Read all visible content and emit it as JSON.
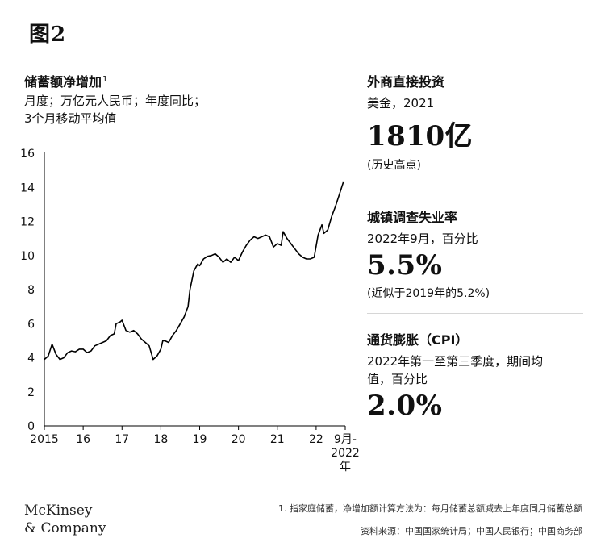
{
  "figure_label": "图2",
  "chart_data": {
    "type": "line",
    "title": "储蓄额净增加",
    "title_footnote_mark": "1",
    "subtitle_line1": "月度；万亿元人民币；年度同比；",
    "subtitle_line2": "3个月移动平均值",
    "ylim": [
      0,
      16
    ],
    "yticks": [
      "0",
      "2",
      "4",
      "6",
      "8",
      "10",
      "12",
      "14",
      "16"
    ],
    "xlim": [
      2015,
      2022.75
    ],
    "xticks": [
      {
        "x": 2015,
        "label": "2015"
      },
      {
        "x": 2016,
        "label": "16"
      },
      {
        "x": 2017,
        "label": "17"
      },
      {
        "x": 2018,
        "label": "18"
      },
      {
        "x": 2019,
        "label": "19"
      },
      {
        "x": 2020,
        "label": "20"
      },
      {
        "x": 2021,
        "label": "21"
      },
      {
        "x": 2022,
        "label": "22"
      }
    ],
    "end_tick_label": [
      "9月-",
      "2022",
      "年"
    ],
    "grid": false,
    "line_color": "#000000",
    "series": [
      {
        "points": [
          [
            2015.0,
            3.9
          ],
          [
            2015.1,
            4.1
          ],
          [
            2015.2,
            4.8
          ],
          [
            2015.3,
            4.2
          ],
          [
            2015.4,
            3.9
          ],
          [
            2015.5,
            4.0
          ],
          [
            2015.6,
            4.3
          ],
          [
            2015.7,
            4.4
          ],
          [
            2015.8,
            4.35
          ],
          [
            2015.9,
            4.5
          ],
          [
            2016.0,
            4.5
          ],
          [
            2016.1,
            4.3
          ],
          [
            2016.2,
            4.4
          ],
          [
            2016.3,
            4.7
          ],
          [
            2016.4,
            4.8
          ],
          [
            2016.5,
            4.9
          ],
          [
            2016.6,
            5.0
          ],
          [
            2016.7,
            5.3
          ],
          [
            2016.8,
            5.4
          ],
          [
            2016.85,
            6.0
          ],
          [
            2016.95,
            6.1
          ],
          [
            2017.0,
            6.2
          ],
          [
            2017.1,
            5.6
          ],
          [
            2017.2,
            5.5
          ],
          [
            2017.3,
            5.6
          ],
          [
            2017.4,
            5.4
          ],
          [
            2017.5,
            5.1
          ],
          [
            2017.6,
            4.9
          ],
          [
            2017.7,
            4.7
          ],
          [
            2017.75,
            4.3
          ],
          [
            2017.8,
            3.9
          ],
          [
            2017.9,
            4.1
          ],
          [
            2017.95,
            4.3
          ],
          [
            2018.0,
            4.5
          ],
          [
            2018.05,
            5.0
          ],
          [
            2018.1,
            5.0
          ],
          [
            2018.2,
            4.9
          ],
          [
            2018.3,
            5.3
          ],
          [
            2018.4,
            5.6
          ],
          [
            2018.5,
            6.0
          ],
          [
            2018.6,
            6.4
          ],
          [
            2018.7,
            7.0
          ],
          [
            2018.75,
            8.0
          ],
          [
            2018.85,
            9.1
          ],
          [
            2018.95,
            9.5
          ],
          [
            2019.0,
            9.4
          ],
          [
            2019.1,
            9.8
          ],
          [
            2019.2,
            9.95
          ],
          [
            2019.3,
            10.0
          ],
          [
            2019.4,
            10.1
          ],
          [
            2019.5,
            9.9
          ],
          [
            2019.6,
            9.6
          ],
          [
            2019.7,
            9.8
          ],
          [
            2019.8,
            9.6
          ],
          [
            2019.9,
            9.9
          ],
          [
            2020.0,
            9.7
          ],
          [
            2020.1,
            10.2
          ],
          [
            2020.2,
            10.6
          ],
          [
            2020.3,
            10.9
          ],
          [
            2020.4,
            11.1
          ],
          [
            2020.5,
            11.0
          ],
          [
            2020.6,
            11.1
          ],
          [
            2020.7,
            11.2
          ],
          [
            2020.8,
            11.1
          ],
          [
            2020.9,
            10.5
          ],
          [
            2021.0,
            10.7
          ],
          [
            2021.1,
            10.6
          ],
          [
            2021.15,
            11.4
          ],
          [
            2021.25,
            11.0
          ],
          [
            2021.35,
            10.7
          ],
          [
            2021.45,
            10.4
          ],
          [
            2021.55,
            10.1
          ],
          [
            2021.65,
            9.9
          ],
          [
            2021.75,
            9.8
          ],
          [
            2021.85,
            9.8
          ],
          [
            2021.95,
            9.9
          ],
          [
            2022.05,
            11.2
          ],
          [
            2022.15,
            11.8
          ],
          [
            2022.2,
            11.3
          ],
          [
            2022.3,
            11.5
          ],
          [
            2022.4,
            12.3
          ],
          [
            2022.5,
            12.9
          ],
          [
            2022.6,
            13.6
          ],
          [
            2022.7,
            14.3
          ]
        ]
      }
    ]
  },
  "panels": [
    {
      "title": "外商直接投资",
      "sub": "美金，2021",
      "value": "1810亿",
      "note": "(历史高点)"
    },
    {
      "title": "城镇调查失业率",
      "sub": "2022年9月，百分比",
      "value": "5.5%",
      "note": "(近似于2019年的5.2%)"
    },
    {
      "title": "通货膨胀（CPI）",
      "sub_line1": "2022年第一至第三季度，期间均",
      "sub_line2": "值，百分比",
      "value": "2.0%"
    }
  ],
  "logo_line1": "McKinsey",
  "logo_line2": "& Company",
  "footnote": "1. 指家庭储蓄，净增加额计算方法为：每月储蓄总额减去上年度同月储蓄总额",
  "source": "资料来源：中国国家统计局；中国人民银行；中国商务部"
}
